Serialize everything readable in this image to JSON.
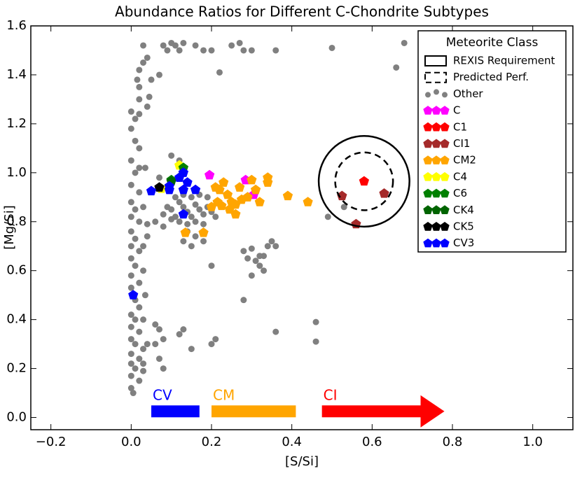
{
  "chart_data": {
    "type": "scatter",
    "title": "Abundance Ratios for Different C-Chondrite Subtypes",
    "x_label": "[S/Si]",
    "y_label": "[Mg/Si]",
    "xlim": [
      -0.25,
      1.1
    ],
    "ylim": [
      -0.05,
      1.6
    ],
    "xticks": [
      {
        "value": -0.2,
        "label": "−0.2"
      },
      {
        "value": 0,
        "label": "0.0"
      },
      {
        "value": 0.2,
        "label": "0.2"
      },
      {
        "value": 0.4,
        "label": "0.4"
      },
      {
        "value": 0.6,
        "label": "0.6"
      },
      {
        "value": 0.8,
        "label": "0.8"
      },
      {
        "value": 1,
        "label": "1.0"
      }
    ],
    "yticks": [
      {
        "value": 0,
        "label": "0.0"
      },
      {
        "value": 0.2,
        "label": "0.2"
      },
      {
        "value": 0.4,
        "label": "0.4"
      },
      {
        "value": 0.6,
        "label": "0.6"
      },
      {
        "value": 0.8,
        "label": "0.8"
      },
      {
        "value": 1,
        "label": "1.0"
      },
      {
        "value": 1.2,
        "label": "1.2"
      },
      {
        "value": 1.4,
        "label": "1.4"
      },
      {
        "value": 1.6,
        "label": "1.6"
      }
    ],
    "legend_title": "Meteorite Class",
    "legend_position": "upper right",
    "regions": [
      {
        "name": "REXIS Requirement",
        "center": [
          0.58,
          0.965
        ],
        "radius": 0.113,
        "style": "solid"
      },
      {
        "name": "Predicted Perf.",
        "center": [
          0.58,
          0.965
        ],
        "radius": 0.072,
        "style": "dashed"
      }
    ],
    "series": [
      {
        "name": "Other",
        "color": "#808080",
        "marker": "circle",
        "x": [
          0.0,
          0.01,
          0.02,
          0.0,
          0.01,
          0.02,
          0.0,
          0.01,
          0.0,
          0.02,
          0.0,
          0.01,
          0.03,
          0.0,
          0.02,
          0.04,
          0.0,
          0.01,
          0.0,
          0.02,
          0.0,
          0.01,
          0.0,
          0.02,
          0.0,
          0.01,
          0.02,
          0.0,
          0.01,
          0.0,
          0.02,
          0.0,
          0.01,
          0.03,
          0.0,
          0.02,
          0.0,
          0.01,
          0.03,
          0.0,
          0.02,
          0.0,
          0.005,
          0.03,
          0.04,
          0.03,
          0.035,
          0.03,
          0.03,
          0.04,
          0.02,
          0.035,
          0.02,
          0.02,
          0.015,
          0.02,
          0.03,
          0.05,
          0.045,
          0.04,
          0.03,
          0.08,
          0.09,
          0.1,
          0.11,
          0.12,
          0.13,
          0.16,
          0.18,
          0.2,
          0.25,
          0.27,
          0.28,
          0.3,
          0.36,
          0.5,
          0.68,
          0.66,
          0.22,
          0.07,
          0.04,
          0.1,
          0.11,
          0.12,
          0.13,
          0.14,
          0.15,
          0.16,
          0.17,
          0.18,
          0.19,
          0.2,
          0.12,
          0.14,
          0.16,
          0.18,
          0.1,
          0.09,
          0.11,
          0.13,
          0.15,
          0.17,
          0.19,
          0.21,
          0.08,
          0.14,
          0.16,
          0.18,
          0.13,
          0.15,
          0.1,
          0.12,
          0.07,
          0.06,
          0.08,
          0.28,
          0.29,
          0.3,
          0.31,
          0.32,
          0.33,
          0.34,
          0.35,
          0.36,
          0.33,
          0.3,
          0.28,
          0.32,
          0.2,
          0.12,
          0.13,
          0.15,
          0.2,
          0.21,
          0.36,
          0.46,
          0.46,
          0.53,
          0.49,
          0.06,
          0.07,
          0.08,
          0.06,
          0.07,
          0.08
        ],
        "values": [
          1.25,
          1.22,
          1.24,
          1.18,
          1.13,
          1.1,
          1.05,
          1.0,
          0.95,
          0.92,
          0.88,
          0.85,
          0.86,
          0.82,
          0.8,
          0.79,
          0.76,
          0.73,
          0.7,
          0.68,
          0.65,
          0.62,
          0.58,
          0.55,
          0.53,
          0.48,
          0.45,
          0.42,
          0.4,
          0.37,
          0.35,
          0.32,
          0.3,
          0.28,
          0.26,
          0.24,
          0.22,
          0.2,
          0.19,
          0.17,
          0.15,
          0.12,
          0.1,
          0.22,
          0.3,
          0.4,
          0.5,
          0.6,
          0.7,
          0.74,
          1.02,
          1.02,
          1.3,
          1.35,
          1.38,
          1.42,
          1.45,
          1.38,
          1.31,
          1.47,
          1.52,
          1.52,
          1.5,
          1.53,
          1.52,
          1.5,
          1.53,
          1.52,
          1.5,
          1.5,
          1.52,
          1.53,
          1.5,
          1.5,
          1.5,
          1.51,
          1.53,
          1.43,
          1.41,
          1.4,
          1.27,
          0.85,
          0.82,
          0.88,
          0.86,
          0.84,
          0.82,
          0.87,
          0.85,
          0.83,
          0.86,
          0.84,
          0.8,
          0.79,
          0.8,
          0.79,
          0.81,
          0.86,
          0.9,
          0.91,
          0.9,
          0.91,
          0.9,
          0.82,
          0.83,
          0.76,
          0.74,
          0.72,
          0.72,
          0.7,
          1.07,
          1.05,
          0.98,
          0.8,
          0.78,
          0.68,
          0.65,
          0.69,
          0.64,
          0.62,
          0.66,
          0.7,
          0.72,
          0.7,
          0.6,
          0.58,
          0.48,
          0.66,
          0.62,
          0.34,
          0.36,
          0.28,
          0.3,
          0.32,
          0.35,
          0.39,
          0.31,
          0.86,
          0.82,
          0.38,
          0.36,
          0.32,
          0.3,
          0.24,
          0.2
        ]
      },
      {
        "name": "C",
        "color": "#ff00ff",
        "marker": "pentagon",
        "x": [
          0.195,
          0.285,
          0.305
        ],
        "values": [
          0.99,
          0.97,
          0.91
        ]
      },
      {
        "name": "C1",
        "color": "#ff0000",
        "marker": "pentagon",
        "x": [
          0.58
        ],
        "values": [
          0.965
        ]
      },
      {
        "name": "CI1",
        "color": "#a52a2a",
        "marker": "pentagon",
        "x": [
          0.525,
          0.63,
          0.56
        ],
        "values": [
          0.905,
          0.915,
          0.79
        ]
      },
      {
        "name": "CM2",
        "color": "#ffa500",
        "marker": "pentagon",
        "x": [
          0.135,
          0.18,
          0.2,
          0.21,
          0.22,
          0.23,
          0.24,
          0.25,
          0.26,
          0.27,
          0.275,
          0.29,
          0.3,
          0.31,
          0.32,
          0.34,
          0.34,
          0.39,
          0.44,
          0.215,
          0.225,
          0.245,
          0.26
        ],
        "values": [
          0.755,
          0.755,
          0.86,
          0.94,
          0.93,
          0.96,
          0.91,
          0.88,
          0.83,
          0.94,
          0.89,
          0.9,
          0.97,
          0.93,
          0.88,
          0.98,
          0.96,
          0.905,
          0.88,
          0.88,
          0.865,
          0.85,
          0.87
        ]
      },
      {
        "name": "C4",
        "color": "#ffff00",
        "marker": "pentagon",
        "x": [
          0.12,
          0.075
        ],
        "values": [
          1.03,
          0.935
        ]
      },
      {
        "name": "C6",
        "color": "#008000",
        "marker": "pentagon",
        "x": [
          0.13,
          0.1
        ],
        "values": [
          1.02,
          0.97
        ]
      },
      {
        "name": "CK4",
        "color": "#006400",
        "marker": "pentagon",
        "x": [
          0.1
        ],
        "values": [
          0.965
        ]
      },
      {
        "name": "CK5",
        "color": "#000000",
        "marker": "pentagon",
        "x": [
          0.07
        ],
        "values": [
          0.94
        ]
      },
      {
        "name": "CV3",
        "color": "#0000ff",
        "marker": "pentagon",
        "x": [
          0.05,
          0.095,
          0.12,
          0.13,
          0.14,
          0.13,
          0.16,
          0.13,
          0.005,
          0.095
        ],
        "values": [
          0.925,
          0.93,
          0.98,
          1.0,
          0.96,
          0.93,
          0.93,
          0.83,
          0.5,
          0.945
        ]
      }
    ],
    "ranges": [
      {
        "label": "CV",
        "color": "#0000ff",
        "start": 0.05,
        "end": 0.17,
        "y": 0.025,
        "shape": "bar"
      },
      {
        "label": "CM",
        "color": "#ffa500",
        "start": 0.2,
        "end": 0.41,
        "y": 0.025,
        "shape": "bar"
      },
      {
        "label": "CI",
        "color": "#ff0000",
        "start": 0.475,
        "end": 0.78,
        "y": 0.025,
        "shape": "arrow"
      }
    ]
  }
}
